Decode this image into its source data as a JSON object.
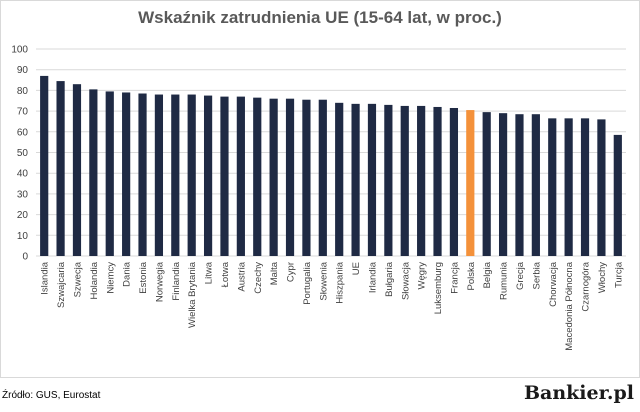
{
  "chart_data": {
    "type": "bar",
    "title": "Wskaźnik zatrudnienia UE (15-64 lat, w proc.)",
    "xlabel": "",
    "ylabel": "",
    "ylim": [
      0,
      100
    ],
    "yticks": [
      0,
      10,
      20,
      30,
      40,
      50,
      60,
      70,
      80,
      90,
      100
    ],
    "grid": true,
    "legend": "none",
    "categories": [
      "Islandia",
      "Szwajcaria",
      "Szwecja",
      "Holandia",
      "Niemcy",
      "Dania",
      "Estonia",
      "Norwegia",
      "Finlandia",
      "Wielka Brytania",
      "Litwa",
      "Łotwa",
      "Austria",
      "Czechy",
      "Malta",
      "Cypr",
      "Portugalia",
      "Słowenia",
      "Hiszpania",
      "UE",
      "Irlandia",
      "Bułgaria",
      "Słowacja",
      "Węgry",
      "Luksemburg",
      "Francja",
      "Polska",
      "Belgia",
      "Rumunia",
      "Grecja",
      "Serbia",
      "Chorwacja",
      "Macedonia Północna",
      "Czarnogóra",
      "Włochy",
      "Turcja"
    ],
    "values": [
      87,
      84.5,
      83,
      80.5,
      79.5,
      79,
      78.5,
      78,
      78,
      78,
      77.5,
      77,
      77,
      76.5,
      76,
      76,
      75.5,
      75.5,
      74,
      73.5,
      73.5,
      73,
      72.5,
      72.5,
      72,
      71.5,
      70.5,
      69.5,
      69,
      68.5,
      68.5,
      66.5,
      66.5,
      66.5,
      66,
      58.5
    ],
    "highlight": "Polska",
    "colors": {
      "bar": "#1f2a44",
      "highlight": "#f4913a",
      "grid": "#d9d9d9",
      "axis_text": "#404040"
    }
  },
  "footer": {
    "source": "Źródło: GUS, Eurostat",
    "brand": "Bankier.pl"
  }
}
